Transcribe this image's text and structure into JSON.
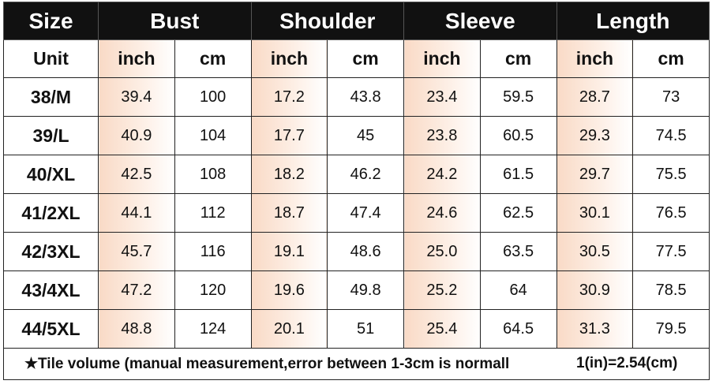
{
  "header": [
    "Size",
    "Bust",
    "Shoulder",
    "Sleeve",
    "Length"
  ],
  "units": [
    "Unit",
    "inch",
    "cm",
    "inch",
    "cm",
    "inch",
    "cm",
    "inch",
    "cm"
  ],
  "rows": [
    [
      "38/M",
      "39.4",
      "100",
      "17.2",
      "43.8",
      "23.4",
      "59.5",
      "28.7",
      "73"
    ],
    [
      "39/L",
      "40.9",
      "104",
      "17.7",
      "45",
      "23.8",
      "60.5",
      "29.3",
      "74.5"
    ],
    [
      "40/XL",
      "42.5",
      "108",
      "18.2",
      "46.2",
      "24.2",
      "61.5",
      "29.7",
      "75.5"
    ],
    [
      "41/2XL",
      "44.1",
      "112",
      "18.7",
      "47.4",
      "24.6",
      "62.5",
      "30.1",
      "76.5"
    ],
    [
      "42/3XL",
      "45.7",
      "116",
      "19.1",
      "48.6",
      "25.0",
      "63.5",
      "30.5",
      "77.5"
    ],
    [
      "43/4XL",
      "47.2",
      "120",
      "19.6",
      "49.8",
      "25.2",
      "64",
      "30.9",
      "78.5"
    ],
    [
      "44/5XL",
      "48.8",
      "124",
      "20.1",
      "51",
      "25.4",
      "64.5",
      "31.3",
      "79.5"
    ]
  ],
  "footer": {
    "note": "★Tile volume (manual measurement,error between 1-3cm is normall",
    "conversion": "1(in)=2.54(cm)"
  }
}
